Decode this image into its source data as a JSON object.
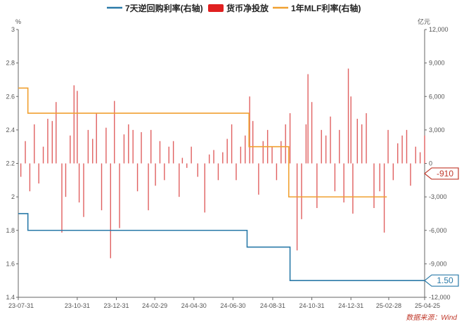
{
  "chart_data": {
    "type": "bar+line",
    "legend": {
      "position": "top",
      "items": [
        {
          "label": "7天逆回购利率(右轴)",
          "color": "#2a7aa8",
          "kind": "line"
        },
        {
          "label": "货币净投放",
          "color": "#e02020",
          "kind": "bar"
        },
        {
          "label": "1年MLF利率(右轴)",
          "color": "#f0a030",
          "kind": "line"
        }
      ]
    },
    "left_axis": {
      "unit": "%",
      "min": 1.4,
      "max": 3.0,
      "ticks": [
        "3",
        "2.8",
        "2.6",
        "2.4",
        "2.2",
        "2",
        "1.8",
        "1.6",
        "1.4"
      ]
    },
    "right_axis": {
      "unit": "亿元",
      "min": -12000,
      "max": 12000,
      "ticks": [
        "12,000",
        "9,000",
        "6,000",
        "3,000",
        "0",
        "-3,000",
        "-6,000",
        "-9,000",
        "-12,000"
      ]
    },
    "x_axis": {
      "start": "2023-07-31",
      "end": "2025-04-25",
      "ticks": [
        {
          "date": "2023-07-31",
          "label": "23-07-31"
        },
        {
          "date": "2023-10-31",
          "label": "23-10-31"
        },
        {
          "date": "2023-12-31",
          "label": "23-12-31"
        },
        {
          "date": "2024-02-29",
          "label": "24-02-29"
        },
        {
          "date": "2024-04-30",
          "label": "24-04-30"
        },
        {
          "date": "2024-06-30",
          "label": "24-06-30"
        },
        {
          "date": "2024-08-31",
          "label": "24-08-31"
        },
        {
          "date": "2024-10-31",
          "label": "24-10-31"
        },
        {
          "date": "2024-12-31",
          "label": "24-12-31"
        },
        {
          "date": "2025-02-28",
          "label": "25-02-28"
        },
        {
          "date": "2025-04-25",
          "label": "25-04-25"
        }
      ]
    },
    "series": {
      "reverse_repo_7d": {
        "color": "#2a7aa8",
        "steps": [
          {
            "from": "2023-07-31",
            "value": 1.9
          },
          {
            "from": "2023-08-15",
            "value": 1.8
          },
          {
            "from": "2024-07-22",
            "value": 1.7
          },
          {
            "from": "2024-09-27",
            "value": 1.5
          }
        ],
        "end": "2025-04-25"
      },
      "mlf_1y": {
        "color": "#f0a030",
        "steps": [
          {
            "from": "2023-07-31",
            "value": 2.65
          },
          {
            "from": "2023-08-15",
            "value": 2.5
          },
          {
            "from": "2024-07-25",
            "value": 2.3
          },
          {
            "from": "2024-09-25",
            "value": 2.0
          }
        ],
        "end": "2025-02-25"
      },
      "net_injection": {
        "color": "#e06060",
        "bars": [
          {
            "date": "2023-08-04",
            "value": -1200
          },
          {
            "date": "2023-08-11",
            "value": 2000
          },
          {
            "date": "2023-08-18",
            "value": -2500
          },
          {
            "date": "2023-08-25",
            "value": 3500
          },
          {
            "date": "2023-09-01",
            "value": -1800
          },
          {
            "date": "2023-09-08",
            "value": 1500
          },
          {
            "date": "2023-09-15",
            "value": 4000
          },
          {
            "date": "2023-09-22",
            "value": 3800
          },
          {
            "date": "2023-09-28",
            "value": 5500
          },
          {
            "date": "2023-10-07",
            "value": -6200
          },
          {
            "date": "2023-10-13",
            "value": -3000
          },
          {
            "date": "2023-10-20",
            "value": 2500
          },
          {
            "date": "2023-10-26",
            "value": 7000
          },
          {
            "date": "2023-10-31",
            "value": 6500
          },
          {
            "date": "2023-11-03",
            "value": -3500
          },
          {
            "date": "2023-11-10",
            "value": -4800
          },
          {
            "date": "2023-11-17",
            "value": 3000
          },
          {
            "date": "2023-11-24",
            "value": 2200
          },
          {
            "date": "2023-11-30",
            "value": 4500
          },
          {
            "date": "2023-12-08",
            "value": -4200
          },
          {
            "date": "2023-12-15",
            "value": 3200
          },
          {
            "date": "2023-12-22",
            "value": -8500
          },
          {
            "date": "2023-12-28",
            "value": 5600
          },
          {
            "date": "2024-01-05",
            "value": -5800
          },
          {
            "date": "2024-01-12",
            "value": 2600
          },
          {
            "date": "2024-01-19",
            "value": 3500
          },
          {
            "date": "2024-01-26",
            "value": 3000
          },
          {
            "date": "2024-02-02",
            "value": -2500
          },
          {
            "date": "2024-02-08",
            "value": 2800
          },
          {
            "date": "2024-02-19",
            "value": -4200
          },
          {
            "date": "2024-02-23",
            "value": 3000
          },
          {
            "date": "2024-03-01",
            "value": -2000
          },
          {
            "date": "2024-03-08",
            "value": 2000
          },
          {
            "date": "2024-03-15",
            "value": -1500
          },
          {
            "date": "2024-03-22",
            "value": 1500
          },
          {
            "date": "2024-03-29",
            "value": 2000
          },
          {
            "date": "2024-04-07",
            "value": -3000
          },
          {
            "date": "2024-04-12",
            "value": 500
          },
          {
            "date": "2024-04-19",
            "value": -400
          },
          {
            "date": "2024-04-26",
            "value": 1500
          },
          {
            "date": "2024-05-06",
            "value": -1200
          },
          {
            "date": "2024-05-17",
            "value": -4400
          },
          {
            "date": "2024-05-24",
            "value": 800
          },
          {
            "date": "2024-05-31",
            "value": 1200
          },
          {
            "date": "2024-06-07",
            "value": -1500
          },
          {
            "date": "2024-06-14",
            "value": 1000
          },
          {
            "date": "2024-06-21",
            "value": 2200
          },
          {
            "date": "2024-06-28",
            "value": 3500
          },
          {
            "date": "2024-07-05",
            "value": -1500
          },
          {
            "date": "2024-07-12",
            "value": 1500
          },
          {
            "date": "2024-07-19",
            "value": 2500
          },
          {
            "date": "2024-07-26",
            "value": 6000
          },
          {
            "date": "2024-07-31",
            "value": 3800
          },
          {
            "date": "2024-08-09",
            "value": -2800
          },
          {
            "date": "2024-08-16",
            "value": 2000
          },
          {
            "date": "2024-08-23",
            "value": 3000
          },
          {
            "date": "2024-08-30",
            "value": 1500
          },
          {
            "date": "2024-09-06",
            "value": -1500
          },
          {
            "date": "2024-09-13",
            "value": 2000
          },
          {
            "date": "2024-09-20",
            "value": 3500
          },
          {
            "date": "2024-09-27",
            "value": 4500
          },
          {
            "date": "2024-10-08",
            "value": -7800
          },
          {
            "date": "2024-10-15",
            "value": -5000
          },
          {
            "date": "2024-10-22",
            "value": 3500
          },
          {
            "date": "2024-10-25",
            "value": 8000
          },
          {
            "date": "2024-10-31",
            "value": 5500
          },
          {
            "date": "2024-11-08",
            "value": -4000
          },
          {
            "date": "2024-11-15",
            "value": 3000
          },
          {
            "date": "2024-11-22",
            "value": 2500
          },
          {
            "date": "2024-11-29",
            "value": 4200
          },
          {
            "date": "2024-12-06",
            "value": -2500
          },
          {
            "date": "2024-12-13",
            "value": 3000
          },
          {
            "date": "2024-12-20",
            "value": -3500
          },
          {
            "date": "2024-12-27",
            "value": 8500
          },
          {
            "date": "2024-12-31",
            "value": 6000
          },
          {
            "date": "2025-01-03",
            "value": -4500
          },
          {
            "date": "2025-01-10",
            "value": 4000
          },
          {
            "date": "2025-01-17",
            "value": 3500
          },
          {
            "date": "2025-01-24",
            "value": 4500
          },
          {
            "date": "2025-02-05",
            "value": -4000
          },
          {
            "date": "2025-02-14",
            "value": -2500
          },
          {
            "date": "2025-02-21",
            "value": -6200
          },
          {
            "date": "2025-02-27",
            "value": 3000
          },
          {
            "date": "2025-03-07",
            "value": -1500
          },
          {
            "date": "2025-03-14",
            "value": 1800
          },
          {
            "date": "2025-03-21",
            "value": 2500
          },
          {
            "date": "2025-03-28",
            "value": 3000
          },
          {
            "date": "2025-04-03",
            "value": -2000
          },
          {
            "date": "2025-04-11",
            "value": 1500
          },
          {
            "date": "2025-04-18",
            "value": 1000
          },
          {
            "date": "2025-04-25",
            "value": 2500
          }
        ]
      }
    },
    "callouts": [
      {
        "label": "-910",
        "value": -910,
        "axis": "right",
        "color": "#c0392b"
      },
      {
        "label": "1.50",
        "value": 1.5,
        "axis": "left",
        "color": "#2a7aa8"
      }
    ],
    "source": "数据来源：Wind"
  }
}
